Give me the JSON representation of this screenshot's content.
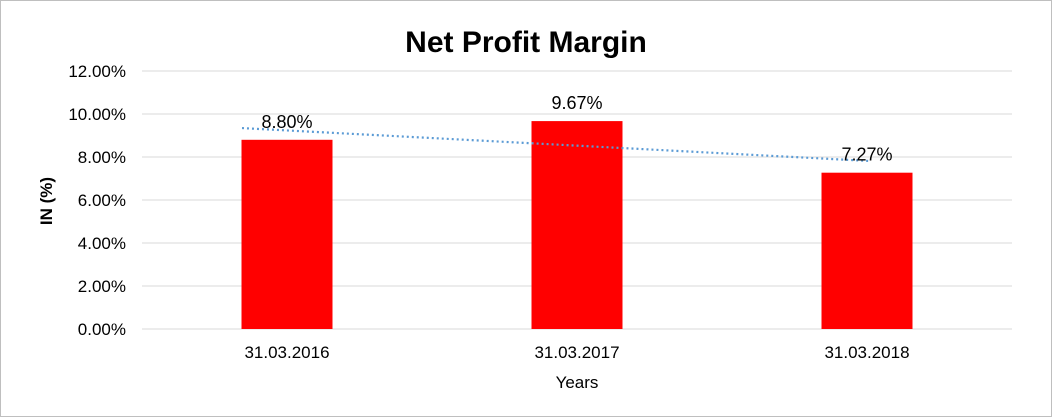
{
  "chart_data": {
    "type": "bar",
    "title": "Net Profit Margin",
    "xlabel": "Years",
    "ylabel": "IN (%)",
    "categories": [
      "31.03.2016",
      "31.03.2017",
      "31.03.2018"
    ],
    "values": [
      8.8,
      9.67,
      7.27
    ],
    "data_labels": [
      "8.80%",
      "9.67%",
      "7.27%"
    ],
    "ylim": [
      0,
      12
    ],
    "y_ticks": [
      "0.00%",
      "2.00%",
      "4.00%",
      "6.00%",
      "8.00%",
      "10.00%",
      "12.00%"
    ],
    "grid": true,
    "trendline": "linear",
    "colors": {
      "bar": "#ff0000",
      "trendline": "#5b9bd5",
      "grid": "#d9d9d9"
    }
  }
}
